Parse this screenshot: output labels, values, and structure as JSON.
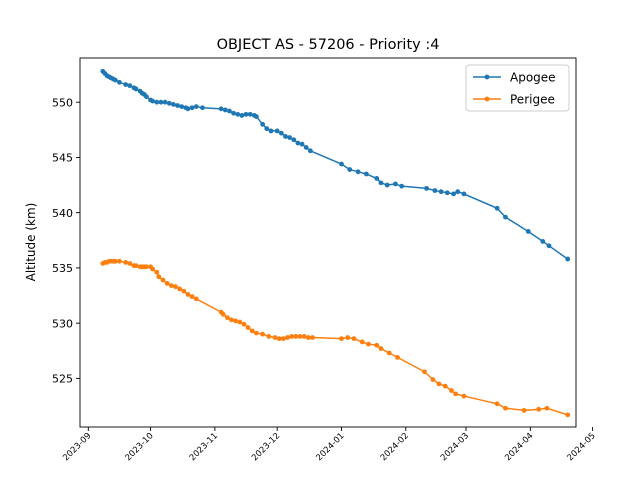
{
  "chart_data": {
    "type": "line",
    "title": "OBJECT AS - 57206 - Priority :4",
    "xlabel": "",
    "ylabel": "Altitude (km)",
    "x_axis_type": "date",
    "xlim": [
      "2023-08-28",
      "2024-04-23"
    ],
    "ylim": [
      520.6,
      554.0
    ],
    "x_ticks": [
      {
        "date": "2023-09-01",
        "label": "2023-09"
      },
      {
        "date": "2023-10-01",
        "label": "2023-10"
      },
      {
        "date": "2023-11-01",
        "label": "2023-11"
      },
      {
        "date": "2023-12-01",
        "label": "2023-12"
      },
      {
        "date": "2024-01-01",
        "label": "2024-01"
      },
      {
        "date": "2024-02-01",
        "label": "2024-02"
      },
      {
        "date": "2024-03-01",
        "label": "2024-03"
      },
      {
        "date": "2024-04-01",
        "label": "2024-04"
      },
      {
        "date": "2024-05-01",
        "label": "2024-05"
      }
    ],
    "y_ticks": [
      525,
      530,
      535,
      540,
      545,
      550
    ],
    "grid": false,
    "legend_position": "top-right",
    "series": [
      {
        "name": "Apogee",
        "color": "#1f77b4",
        "points": [
          [
            "2023-09-08",
            552.8
          ],
          [
            "2023-09-09",
            552.6
          ],
          [
            "2023-09-10",
            552.4
          ],
          [
            "2023-09-11",
            552.3
          ],
          [
            "2023-09-12",
            552.2
          ],
          [
            "2023-09-13",
            552.1
          ],
          [
            "2023-09-14",
            552.0
          ],
          [
            "2023-09-16",
            551.8
          ],
          [
            "2023-09-19",
            551.6
          ],
          [
            "2023-09-21",
            551.5
          ],
          [
            "2023-09-23",
            551.3
          ],
          [
            "2023-09-24",
            551.2
          ],
          [
            "2023-09-26",
            551.0
          ],
          [
            "2023-09-27",
            550.8
          ],
          [
            "2023-09-28",
            550.7
          ],
          [
            "2023-09-29",
            550.5
          ],
          [
            "2023-10-01",
            550.2
          ],
          [
            "2023-10-02",
            550.1
          ],
          [
            "2023-10-04",
            550.0
          ],
          [
            "2023-10-06",
            550.0
          ],
          [
            "2023-10-08",
            550.0
          ],
          [
            "2023-10-10",
            549.9
          ],
          [
            "2023-10-12",
            549.8
          ],
          [
            "2023-10-14",
            549.7
          ],
          [
            "2023-10-16",
            549.6
          ],
          [
            "2023-10-18",
            549.5
          ],
          [
            "2023-10-19",
            549.4
          ],
          [
            "2023-10-21",
            549.5
          ],
          [
            "2023-10-23",
            549.6
          ],
          [
            "2023-10-26",
            549.5
          ],
          [
            "2023-11-04",
            549.4
          ],
          [
            "2023-11-06",
            549.3
          ],
          [
            "2023-11-08",
            549.2
          ],
          [
            "2023-11-10",
            549.0
          ],
          [
            "2023-11-12",
            548.9
          ],
          [
            "2023-11-14",
            548.8
          ],
          [
            "2023-11-16",
            548.9
          ],
          [
            "2023-11-18",
            548.9
          ],
          [
            "2023-11-20",
            548.8
          ],
          [
            "2023-11-21",
            548.7
          ],
          [
            "2023-11-24",
            548.0
          ],
          [
            "2023-11-26",
            547.6
          ],
          [
            "2023-11-28",
            547.4
          ],
          [
            "2023-12-01",
            547.4
          ],
          [
            "2023-12-03",
            547.2
          ],
          [
            "2023-12-05",
            546.9
          ],
          [
            "2023-12-07",
            546.8
          ],
          [
            "2023-12-09",
            546.6
          ],
          [
            "2023-12-11",
            546.3
          ],
          [
            "2023-12-13",
            546.2
          ],
          [
            "2023-12-15",
            545.9
          ],
          [
            "2023-12-17",
            545.6
          ],
          [
            "2024-01-01",
            544.4
          ],
          [
            "2024-01-05",
            543.9
          ],
          [
            "2024-01-09",
            543.7
          ],
          [
            "2024-01-13",
            543.5
          ],
          [
            "2024-01-18",
            543.1
          ],
          [
            "2024-01-20",
            542.7
          ],
          [
            "2024-01-23",
            542.5
          ],
          [
            "2024-01-27",
            542.6
          ],
          [
            "2024-01-30",
            542.4
          ],
          [
            "2024-02-11",
            542.2
          ],
          [
            "2024-02-15",
            542.0
          ],
          [
            "2024-02-18",
            541.9
          ],
          [
            "2024-02-21",
            541.8
          ],
          [
            "2024-02-24",
            541.7
          ],
          [
            "2024-02-26",
            541.9
          ],
          [
            "2024-02-29",
            541.7
          ],
          [
            "2024-03-16",
            540.4
          ],
          [
            "2024-03-20",
            539.6
          ],
          [
            "2024-03-31",
            538.3
          ],
          [
            "2024-04-07",
            537.4
          ],
          [
            "2024-04-10",
            537.0
          ],
          [
            "2024-04-19",
            535.8
          ]
        ]
      },
      {
        "name": "Perigee",
        "color": "#ff7f0e",
        "points": [
          [
            "2023-09-08",
            535.4
          ],
          [
            "2023-09-09",
            535.5
          ],
          [
            "2023-09-10",
            535.5
          ],
          [
            "2023-09-11",
            535.6
          ],
          [
            "2023-09-12",
            535.6
          ],
          [
            "2023-09-13",
            535.6
          ],
          [
            "2023-09-14",
            535.6
          ],
          [
            "2023-09-16",
            535.6
          ],
          [
            "2023-09-19",
            535.5
          ],
          [
            "2023-09-21",
            535.4
          ],
          [
            "2023-09-23",
            535.2
          ],
          [
            "2023-09-24",
            535.2
          ],
          [
            "2023-09-26",
            535.1
          ],
          [
            "2023-09-27",
            535.1
          ],
          [
            "2023-09-28",
            535.1
          ],
          [
            "2023-09-29",
            535.1
          ],
          [
            "2023-10-01",
            535.1
          ],
          [
            "2023-10-02",
            534.9
          ],
          [
            "2023-10-04",
            534.6
          ],
          [
            "2023-10-05",
            534.2
          ],
          [
            "2023-10-07",
            533.9
          ],
          [
            "2023-10-09",
            533.6
          ],
          [
            "2023-10-11",
            533.4
          ],
          [
            "2023-10-13",
            533.3
          ],
          [
            "2023-10-15",
            533.1
          ],
          [
            "2023-10-17",
            532.9
          ],
          [
            "2023-10-19",
            532.6
          ],
          [
            "2023-10-21",
            532.4
          ],
          [
            "2023-10-23",
            532.2
          ],
          [
            "2023-11-04",
            531.0
          ],
          [
            "2023-11-05",
            530.8
          ],
          [
            "2023-11-07",
            530.5
          ],
          [
            "2023-11-09",
            530.3
          ],
          [
            "2023-11-11",
            530.2
          ],
          [
            "2023-11-13",
            530.1
          ],
          [
            "2023-11-15",
            529.9
          ],
          [
            "2023-11-17",
            529.6
          ],
          [
            "2023-11-19",
            529.3
          ],
          [
            "2023-11-21",
            529.1
          ],
          [
            "2023-11-24",
            529.0
          ],
          [
            "2023-11-27",
            528.8
          ],
          [
            "2023-11-30",
            528.7
          ],
          [
            "2023-12-02",
            528.6
          ],
          [
            "2023-12-04",
            528.6
          ],
          [
            "2023-12-06",
            528.7
          ],
          [
            "2023-12-08",
            528.8
          ],
          [
            "2023-12-10",
            528.8
          ],
          [
            "2023-12-12",
            528.8
          ],
          [
            "2023-12-14",
            528.8
          ],
          [
            "2023-12-16",
            528.7
          ],
          [
            "2023-12-18",
            528.7
          ],
          [
            "2024-01-01",
            528.6
          ],
          [
            "2024-01-04",
            528.7
          ],
          [
            "2024-01-07",
            528.6
          ],
          [
            "2024-01-11",
            528.3
          ],
          [
            "2024-01-14",
            528.1
          ],
          [
            "2024-01-18",
            528.0
          ],
          [
            "2024-01-20",
            527.7
          ],
          [
            "2024-01-24",
            527.3
          ],
          [
            "2024-01-28",
            526.9
          ],
          [
            "2024-02-10",
            525.6
          ],
          [
            "2024-02-14",
            524.9
          ],
          [
            "2024-02-17",
            524.5
          ],
          [
            "2024-02-20",
            524.3
          ],
          [
            "2024-02-23",
            523.9
          ],
          [
            "2024-02-25",
            523.6
          ],
          [
            "2024-02-29",
            523.4
          ],
          [
            "2024-03-16",
            522.7
          ],
          [
            "2024-03-20",
            522.3
          ],
          [
            "2024-03-29",
            522.1
          ],
          [
            "2024-04-05",
            522.2
          ],
          [
            "2024-04-09",
            522.3
          ],
          [
            "2024-04-19",
            521.7
          ]
        ]
      }
    ]
  }
}
